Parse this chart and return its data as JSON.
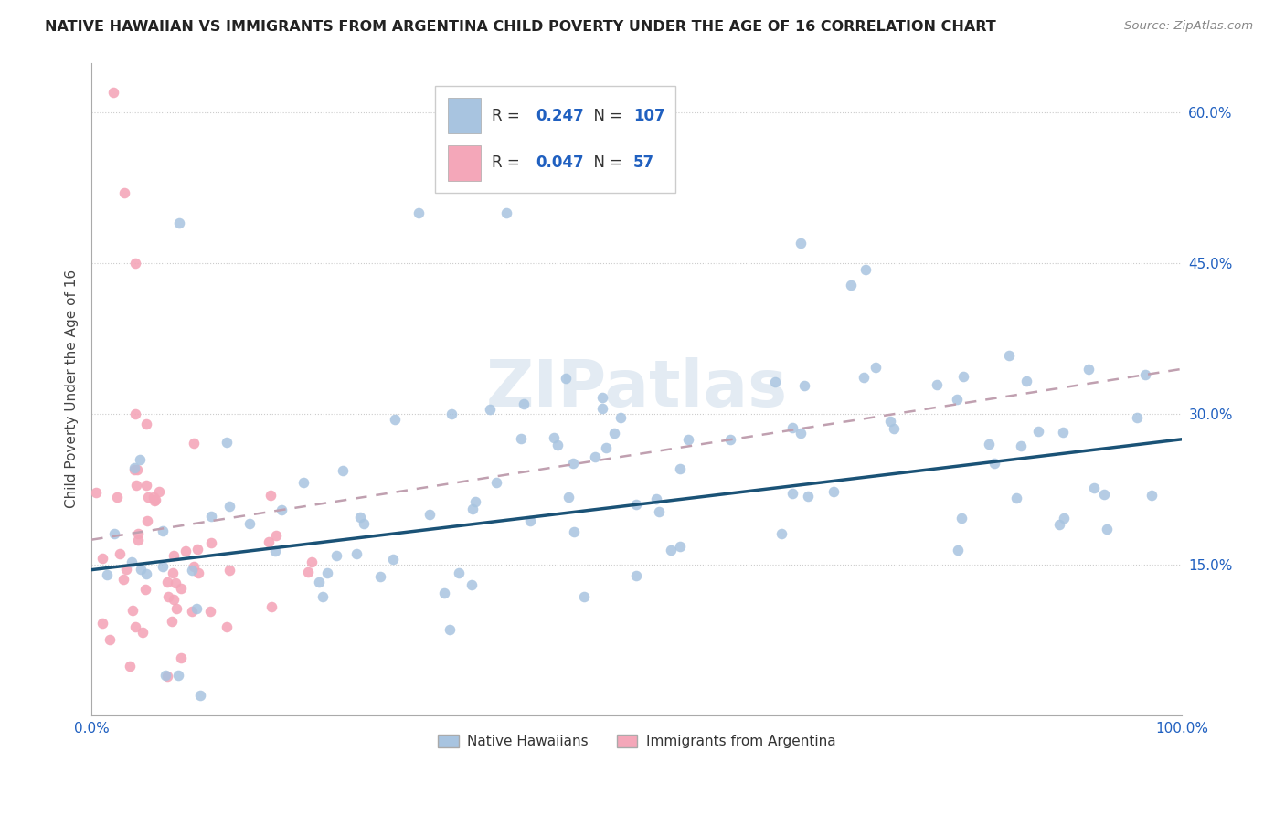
{
  "title": "NATIVE HAWAIIAN VS IMMIGRANTS FROM ARGENTINA CHILD POVERTY UNDER THE AGE OF 16 CORRELATION CHART",
  "source": "Source: ZipAtlas.com",
  "ylabel": "Child Poverty Under the Age of 16",
  "xlim": [
    0.0,
    1.0
  ],
  "ylim": [
    0.0,
    0.65
  ],
  "r_blue": 0.247,
  "n_blue": 107,
  "r_pink": 0.047,
  "n_pink": 57,
  "blue_color": "#a8c4e0",
  "pink_color": "#f4a7b9",
  "blue_line_color": "#1a5276",
  "pink_line_color": "#c0a0b0",
  "watermark": "ZIPatlas",
  "legend_label_blue": "Native Hawaiians",
  "legend_label_pink": "Immigrants from Argentina",
  "blue_line_y0": 0.145,
  "blue_line_y1": 0.275,
  "pink_line_y0": 0.175,
  "pink_line_y1": 0.345
}
